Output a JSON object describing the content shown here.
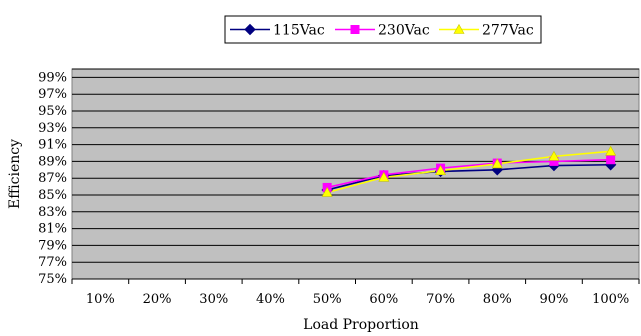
{
  "chart_data": {
    "type": "line",
    "title": "",
    "xlabel": "Load Proportion",
    "ylabel": "Efficiency",
    "categories": [
      "10%",
      "20%",
      "30%",
      "40%",
      "50%",
      "60%",
      "70%",
      "80%",
      "90%",
      "100%"
    ],
    "y_ticks": [
      "75%",
      "77%",
      "79%",
      "81%",
      "83%",
      "85%",
      "87%",
      "89%",
      "91%",
      "93%",
      "95%",
      "97%",
      "99%"
    ],
    "ylim": [
      75,
      100
    ],
    "grid": "horizontal",
    "legend_position": "top",
    "plot_background": "#c0c0c0",
    "series": [
      {
        "name": "115Vac",
        "color": "#000080",
        "marker": "diamond",
        "values": [
          null,
          null,
          null,
          null,
          85.6,
          87.3,
          87.8,
          88.0,
          88.5,
          88.6
        ]
      },
      {
        "name": "230Vac",
        "color": "#ff00ff",
        "marker": "square",
        "values": [
          null,
          null,
          null,
          null,
          85.9,
          87.4,
          88.2,
          88.8,
          89.0,
          89.2
        ]
      },
      {
        "name": "277Vac",
        "color": "#ffff00",
        "marker": "triangle",
        "values": [
          null,
          null,
          null,
          null,
          85.3,
          87.1,
          87.9,
          88.7,
          89.6,
          90.2
        ]
      }
    ]
  }
}
